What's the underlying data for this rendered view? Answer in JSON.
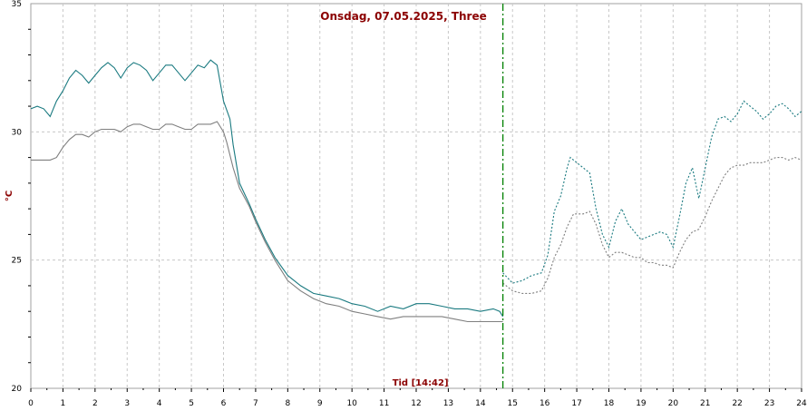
{
  "chart_data": {
    "type": "line",
    "title": "Onsdag, 07.05.2025, Three",
    "ylabel": "°C",
    "xlabel": "Tid [14:42]",
    "ylim": [
      20,
      35
    ],
    "xlim": [
      0,
      24
    ],
    "yticks": [
      20,
      25,
      30,
      35
    ],
    "xticks": [
      0,
      1,
      2,
      3,
      4,
      5,
      6,
      7,
      8,
      9,
      10,
      11,
      12,
      13,
      14,
      15,
      16,
      17,
      18,
      19,
      20,
      21,
      22,
      23,
      24
    ],
    "grid": true,
    "now_x": 14.7,
    "colors": {
      "teal": "#1a7a80",
      "gray": "#7f7f7f",
      "now": "#008000",
      "text": "#8b0000"
    },
    "series": [
      {
        "color": "#1a7a80",
        "observed": [
          [
            0,
            30.9
          ],
          [
            0.2,
            31.0
          ],
          [
            0.4,
            30.9
          ],
          [
            0.6,
            30.6
          ],
          [
            0.8,
            31.2
          ],
          [
            1.0,
            31.6
          ],
          [
            1.2,
            32.1
          ],
          [
            1.4,
            32.4
          ],
          [
            1.6,
            32.2
          ],
          [
            1.8,
            31.9
          ],
          [
            2.0,
            32.2
          ],
          [
            2.2,
            32.5
          ],
          [
            2.4,
            32.7
          ],
          [
            2.6,
            32.5
          ],
          [
            2.8,
            32.1
          ],
          [
            3.0,
            32.5
          ],
          [
            3.2,
            32.7
          ],
          [
            3.4,
            32.6
          ],
          [
            3.6,
            32.4
          ],
          [
            3.8,
            32.0
          ],
          [
            4.0,
            32.3
          ],
          [
            4.2,
            32.6
          ],
          [
            4.4,
            32.6
          ],
          [
            4.6,
            32.3
          ],
          [
            4.8,
            32.0
          ],
          [
            5.0,
            32.3
          ],
          [
            5.2,
            32.6
          ],
          [
            5.4,
            32.5
          ],
          [
            5.6,
            32.8
          ],
          [
            5.8,
            32.6
          ],
          [
            6.0,
            31.2
          ],
          [
            6.2,
            30.5
          ],
          [
            6.3,
            29.5
          ],
          [
            6.5,
            28.0
          ],
          [
            6.8,
            27.2
          ],
          [
            7.0,
            26.6
          ],
          [
            7.3,
            25.8
          ],
          [
            7.6,
            25.1
          ],
          [
            8.0,
            24.4
          ],
          [
            8.4,
            24.0
          ],
          [
            8.8,
            23.7
          ],
          [
            9.2,
            23.6
          ],
          [
            9.6,
            23.5
          ],
          [
            10.0,
            23.3
          ],
          [
            10.4,
            23.2
          ],
          [
            10.8,
            23.0
          ],
          [
            11.2,
            23.2
          ],
          [
            11.6,
            23.1
          ],
          [
            12.0,
            23.3
          ],
          [
            12.4,
            23.3
          ],
          [
            12.8,
            23.2
          ],
          [
            13.2,
            23.1
          ],
          [
            13.6,
            23.1
          ],
          [
            14.0,
            23.0
          ],
          [
            14.4,
            23.1
          ],
          [
            14.6,
            23.0
          ],
          [
            14.7,
            22.8
          ]
        ],
        "forecast": [
          [
            14.7,
            24.5
          ],
          [
            15.0,
            24.1
          ],
          [
            15.3,
            24.2
          ],
          [
            15.6,
            24.4
          ],
          [
            15.9,
            24.5
          ],
          [
            16.1,
            25.2
          ],
          [
            16.3,
            26.9
          ],
          [
            16.5,
            27.5
          ],
          [
            16.7,
            28.6
          ],
          [
            16.8,
            29.0
          ],
          [
            17.0,
            28.8
          ],
          [
            17.2,
            28.6
          ],
          [
            17.4,
            28.4
          ],
          [
            17.6,
            27.0
          ],
          [
            17.8,
            26.0
          ],
          [
            18.0,
            25.5
          ],
          [
            18.2,
            26.5
          ],
          [
            18.4,
            27.0
          ],
          [
            18.6,
            26.4
          ],
          [
            18.8,
            26.1
          ],
          [
            19.0,
            25.8
          ],
          [
            19.2,
            25.9
          ],
          [
            19.4,
            26.0
          ],
          [
            19.6,
            26.1
          ],
          [
            19.8,
            26.0
          ],
          [
            20.0,
            25.5
          ],
          [
            20.2,
            26.7
          ],
          [
            20.4,
            28.0
          ],
          [
            20.6,
            28.6
          ],
          [
            20.8,
            27.4
          ],
          [
            21.0,
            28.6
          ],
          [
            21.2,
            29.8
          ],
          [
            21.4,
            30.5
          ],
          [
            21.6,
            30.6
          ],
          [
            21.8,
            30.4
          ],
          [
            22.0,
            30.7
          ],
          [
            22.2,
            31.2
          ],
          [
            22.4,
            31.0
          ],
          [
            22.6,
            30.8
          ],
          [
            22.8,
            30.5
          ],
          [
            23.0,
            30.7
          ],
          [
            23.2,
            31.0
          ],
          [
            23.4,
            31.1
          ],
          [
            23.6,
            30.9
          ],
          [
            23.8,
            30.6
          ],
          [
            24.0,
            30.8
          ]
        ]
      },
      {
        "color": "#7f7f7f",
        "observed": [
          [
            0,
            28.9
          ],
          [
            0.3,
            28.9
          ],
          [
            0.6,
            28.9
          ],
          [
            0.8,
            29.0
          ],
          [
            1.0,
            29.4
          ],
          [
            1.2,
            29.7
          ],
          [
            1.4,
            29.9
          ],
          [
            1.6,
            29.9
          ],
          [
            1.8,
            29.8
          ],
          [
            2.0,
            30.0
          ],
          [
            2.2,
            30.1
          ],
          [
            2.4,
            30.1
          ],
          [
            2.6,
            30.1
          ],
          [
            2.8,
            30.0
          ],
          [
            3.0,
            30.2
          ],
          [
            3.2,
            30.3
          ],
          [
            3.4,
            30.3
          ],
          [
            3.6,
            30.2
          ],
          [
            3.8,
            30.1
          ],
          [
            4.0,
            30.1
          ],
          [
            4.2,
            30.3
          ],
          [
            4.4,
            30.3
          ],
          [
            4.6,
            30.2
          ],
          [
            4.8,
            30.1
          ],
          [
            5.0,
            30.1
          ],
          [
            5.2,
            30.3
          ],
          [
            5.4,
            30.3
          ],
          [
            5.6,
            30.3
          ],
          [
            5.8,
            30.4
          ],
          [
            6.0,
            30.0
          ],
          [
            6.1,
            29.6
          ],
          [
            6.3,
            28.6
          ],
          [
            6.5,
            27.8
          ],
          [
            6.8,
            27.1
          ],
          [
            7.0,
            26.5
          ],
          [
            7.3,
            25.7
          ],
          [
            7.6,
            25.0
          ],
          [
            8.0,
            24.2
          ],
          [
            8.4,
            23.8
          ],
          [
            8.8,
            23.5
          ],
          [
            9.2,
            23.3
          ],
          [
            9.6,
            23.2
          ],
          [
            10.0,
            23.0
          ],
          [
            10.4,
            22.9
          ],
          [
            10.8,
            22.8
          ],
          [
            11.2,
            22.7
          ],
          [
            11.6,
            22.8
          ],
          [
            12.0,
            22.8
          ],
          [
            12.4,
            22.8
          ],
          [
            12.8,
            22.8
          ],
          [
            13.2,
            22.7
          ],
          [
            13.6,
            22.6
          ],
          [
            14.0,
            22.6
          ],
          [
            14.4,
            22.6
          ],
          [
            14.7,
            22.6
          ]
        ],
        "forecast": [
          [
            14.7,
            24.1
          ],
          [
            15.0,
            23.8
          ],
          [
            15.3,
            23.7
          ],
          [
            15.6,
            23.7
          ],
          [
            15.9,
            23.8
          ],
          [
            16.1,
            24.3
          ],
          [
            16.3,
            25.1
          ],
          [
            16.5,
            25.6
          ],
          [
            16.7,
            26.3
          ],
          [
            16.9,
            26.8
          ],
          [
            17.2,
            26.8
          ],
          [
            17.4,
            26.9
          ],
          [
            17.6,
            26.4
          ],
          [
            17.8,
            25.6
          ],
          [
            18.0,
            25.1
          ],
          [
            18.2,
            25.3
          ],
          [
            18.4,
            25.3
          ],
          [
            18.6,
            25.2
          ],
          [
            18.8,
            25.1
          ],
          [
            19.0,
            25.1
          ],
          [
            19.2,
            24.9
          ],
          [
            19.4,
            24.9
          ],
          [
            19.6,
            24.8
          ],
          [
            19.8,
            24.8
          ],
          [
            20.0,
            24.7
          ],
          [
            20.2,
            25.3
          ],
          [
            20.4,
            25.8
          ],
          [
            20.6,
            26.1
          ],
          [
            20.8,
            26.2
          ],
          [
            21.0,
            26.7
          ],
          [
            21.2,
            27.3
          ],
          [
            21.4,
            27.8
          ],
          [
            21.6,
            28.3
          ],
          [
            21.8,
            28.6
          ],
          [
            22.0,
            28.7
          ],
          [
            22.2,
            28.7
          ],
          [
            22.4,
            28.8
          ],
          [
            22.6,
            28.8
          ],
          [
            22.8,
            28.8
          ],
          [
            23.0,
            28.9
          ],
          [
            23.2,
            29.0
          ],
          [
            23.4,
            29.0
          ],
          [
            23.6,
            28.9
          ],
          [
            23.8,
            29.0
          ],
          [
            24.0,
            28.9
          ]
        ]
      }
    ]
  }
}
